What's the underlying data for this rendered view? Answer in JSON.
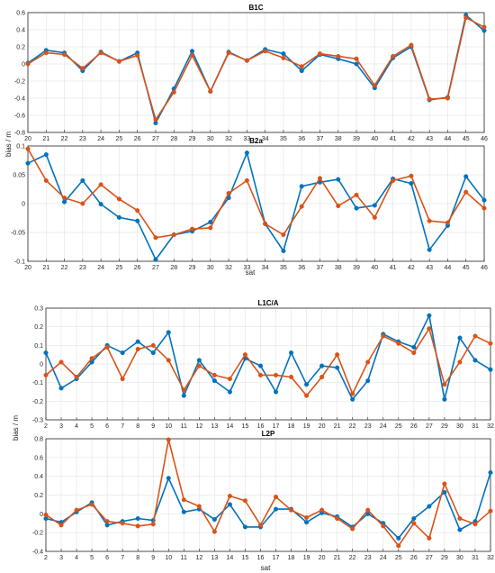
{
  "colors": {
    "series_1": "#0072BD",
    "series_2": "#D95319",
    "grid": "#e6e6e6",
    "axis": "#262626"
  },
  "ylabel_top": "bias / m",
  "ylabel_bottom": "bias / m",
  "xlabel_top": "sat",
  "xlabel_bottom": "sat",
  "chart_data": [
    {
      "type": "line",
      "title": "B1C",
      "grid": true,
      "categories": [
        "20",
        "21",
        "22",
        "23",
        "24",
        "25",
        "26",
        "27",
        "28",
        "29",
        "30",
        "32",
        "33",
        "34",
        "35",
        "36",
        "37",
        "38",
        "39",
        "40",
        "41",
        "42",
        "43",
        "44",
        "45",
        "46"
      ],
      "ylim": [
        -0.8,
        0.6
      ],
      "yticks": [
        -0.8,
        -0.6,
        -0.4,
        -0.2,
        0,
        0.2,
        0.4,
        0.6
      ],
      "series": [
        {
          "values": [
            0.01,
            0.16,
            0.13,
            -0.08,
            0.14,
            0.03,
            0.13,
            -0.69,
            -0.29,
            0.15,
            -0.32,
            0.14,
            0.04,
            0.17,
            0.12,
            -0.08,
            0.11,
            0.06,
            0.0,
            -0.28,
            0.07,
            0.2,
            -0.42,
            -0.39,
            0.57,
            0.39
          ]
        },
        {
          "values": [
            0.0,
            0.13,
            0.11,
            -0.05,
            0.13,
            0.03,
            0.1,
            -0.65,
            -0.33,
            0.1,
            -0.32,
            0.13,
            0.04,
            0.15,
            0.07,
            -0.03,
            0.12,
            0.09,
            0.06,
            -0.25,
            0.09,
            0.22,
            -0.41,
            -0.4,
            0.54,
            0.43
          ]
        }
      ]
    },
    {
      "type": "line",
      "title": "B2a",
      "grid": true,
      "categories": [
        "20",
        "21",
        "22",
        "23",
        "24",
        "25",
        "26",
        "27",
        "28",
        "29",
        "30",
        "32",
        "33",
        "34",
        "35",
        "36",
        "37",
        "38",
        "39",
        "40",
        "41",
        "42",
        "43",
        "44",
        "45",
        "46"
      ],
      "ylim": [
        -0.1,
        0.1
      ],
      "yticks": [
        -0.1,
        -0.05,
        0,
        0.05,
        0.1
      ],
      "series": [
        {
          "values": [
            0.07,
            0.085,
            0.003,
            0.04,
            -0.001,
            -0.024,
            -0.03,
            -0.097,
            -0.054,
            -0.048,
            -0.032,
            0.01,
            0.088,
            -0.035,
            -0.082,
            0.03,
            0.037,
            0.042,
            -0.008,
            -0.003,
            0.043,
            0.035,
            -0.08,
            -0.038,
            0.047,
            0.006
          ]
        },
        {
          "values": [
            0.095,
            0.04,
            0.01,
            0.0,
            0.033,
            0.008,
            -0.012,
            -0.059,
            -0.054,
            -0.044,
            -0.042,
            0.018,
            0.04,
            -0.035,
            -0.054,
            -0.005,
            0.044,
            -0.004,
            0.015,
            -0.024,
            0.04,
            0.048,
            -0.03,
            -0.033,
            0.02,
            -0.008
          ]
        }
      ]
    },
    {
      "type": "line",
      "title": "L1C/A",
      "grid": true,
      "categories": [
        "2",
        "3",
        "4",
        "5",
        "6",
        "7",
        "8",
        "9",
        "10",
        "11",
        "12",
        "13",
        "14",
        "15",
        "16",
        "17",
        "18",
        "19",
        "20",
        "21",
        "22",
        "23",
        "24",
        "25",
        "26",
        "27",
        "29",
        "30",
        "31",
        "32"
      ],
      "ylim": [
        -0.3,
        0.3
      ],
      "yticks": [
        -0.3,
        -0.2,
        -0.1,
        0,
        0.1,
        0.2,
        0.3
      ],
      "series": [
        {
          "values": [
            0.06,
            -0.13,
            -0.08,
            0.01,
            0.1,
            0.06,
            0.12,
            0.06,
            0.17,
            -0.17,
            0.02,
            -0.09,
            -0.15,
            0.03,
            -0.01,
            -0.15,
            0.06,
            -0.11,
            -0.01,
            -0.02,
            -0.19,
            -0.09,
            0.16,
            0.12,
            0.09,
            0.26,
            -0.19,
            0.14,
            0.02,
            -0.03
          ]
        },
        {
          "values": [
            -0.06,
            0.01,
            -0.07,
            0.03,
            0.09,
            -0.08,
            0.08,
            0.1,
            0.02,
            -0.14,
            -0.01,
            -0.06,
            -0.08,
            0.05,
            -0.06,
            -0.06,
            -0.07,
            -0.17,
            -0.07,
            0.05,
            -0.16,
            0.01,
            0.15,
            0.11,
            0.06,
            0.19,
            -0.11,
            0.01,
            0.15,
            0.11
          ]
        }
      ]
    },
    {
      "type": "line",
      "title": "L2P",
      "grid": true,
      "categories": [
        "2",
        "3",
        "4",
        "5",
        "6",
        "7",
        "8",
        "9",
        "10",
        "11",
        "12",
        "13",
        "14",
        "15",
        "16",
        "17",
        "18",
        "19",
        "20",
        "21",
        "22",
        "23",
        "24",
        "25",
        "26",
        "27",
        "29",
        "30",
        "31",
        "32"
      ],
      "ylim": [
        -0.4,
        0.8
      ],
      "yticks": [
        -0.4,
        -0.2,
        0,
        0.2,
        0.4,
        0.6,
        0.8
      ],
      "series": [
        {
          "values": [
            -0.05,
            -0.09,
            0.02,
            0.12,
            -0.12,
            -0.08,
            -0.05,
            -0.07,
            0.38,
            0.02,
            0.05,
            -0.06,
            0.1,
            -0.14,
            -0.14,
            0.05,
            0.05,
            -0.09,
            0.01,
            -0.03,
            -0.14,
            0.0,
            -0.1,
            -0.26,
            -0.05,
            0.08,
            0.23,
            -0.17,
            -0.08,
            0.44
          ]
        },
        {
          "values": [
            -0.01,
            -0.12,
            0.04,
            0.1,
            -0.08,
            -0.1,
            -0.13,
            -0.11,
            0.79,
            0.15,
            0.08,
            -0.19,
            0.19,
            0.14,
            -0.12,
            0.18,
            0.04,
            -0.04,
            0.04,
            -0.05,
            -0.16,
            0.04,
            -0.13,
            -0.34,
            -0.1,
            -0.26,
            0.32,
            -0.05,
            -0.11,
            0.03
          ]
        }
      ]
    }
  ]
}
